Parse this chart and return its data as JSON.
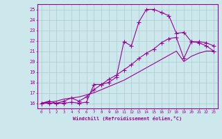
{
  "xlabel": "Windchill (Refroidissement éolien,°C)",
  "ylabel": "",
  "xlim": [
    -0.5,
    23.5
  ],
  "ylim": [
    15.5,
    25.5
  ],
  "xticks": [
    0,
    1,
    2,
    3,
    4,
    5,
    6,
    7,
    8,
    9,
    10,
    11,
    12,
    13,
    14,
    15,
    16,
    17,
    18,
    19,
    20,
    21,
    22,
    23
  ],
  "yticks": [
    16,
    17,
    18,
    19,
    20,
    21,
    22,
    23,
    24,
    25
  ],
  "background_color": "#cce8ec",
  "grid_color": "#aacccc",
  "line_color": "#990099",
  "line1_x": [
    0,
    1,
    2,
    3,
    4,
    5,
    6,
    7,
    8,
    9,
    10,
    11,
    12,
    13,
    14,
    15,
    16,
    17,
    18,
    19,
    20,
    21,
    22,
    23
  ],
  "line1_y": [
    16.0,
    16.2,
    16.0,
    16.0,
    16.1,
    16.0,
    16.1,
    17.8,
    17.8,
    18.0,
    18.5,
    21.9,
    21.5,
    23.8,
    25.0,
    25.0,
    24.7,
    24.4,
    22.7,
    22.8,
    21.9,
    21.8,
    21.5,
    21.0
  ],
  "line2_x": [
    0,
    1,
    2,
    3,
    4,
    5,
    6,
    7,
    8,
    9,
    10,
    11,
    12,
    13,
    14,
    15,
    16,
    17,
    18,
    19,
    20,
    21,
    22,
    23
  ],
  "line2_y": [
    16.0,
    16.0,
    16.0,
    16.2,
    16.5,
    16.2,
    16.6,
    17.3,
    17.8,
    18.3,
    18.7,
    19.2,
    19.7,
    20.3,
    20.8,
    21.2,
    21.8,
    22.2,
    22.3,
    20.3,
    21.9,
    21.9,
    21.8,
    21.5
  ],
  "line3_x": [
    0,
    1,
    2,
    3,
    4,
    5,
    6,
    7,
    8,
    9,
    10,
    11,
    12,
    13,
    14,
    15,
    16,
    17,
    18,
    19,
    20,
    21,
    22,
    23
  ],
  "line3_y": [
    16.0,
    16.1,
    16.2,
    16.4,
    16.5,
    16.6,
    16.8,
    17.0,
    17.3,
    17.6,
    17.9,
    18.2,
    18.6,
    19.0,
    19.4,
    19.8,
    20.2,
    20.6,
    21.0,
    20.0,
    20.5,
    20.8,
    21.0,
    21.0
  ]
}
